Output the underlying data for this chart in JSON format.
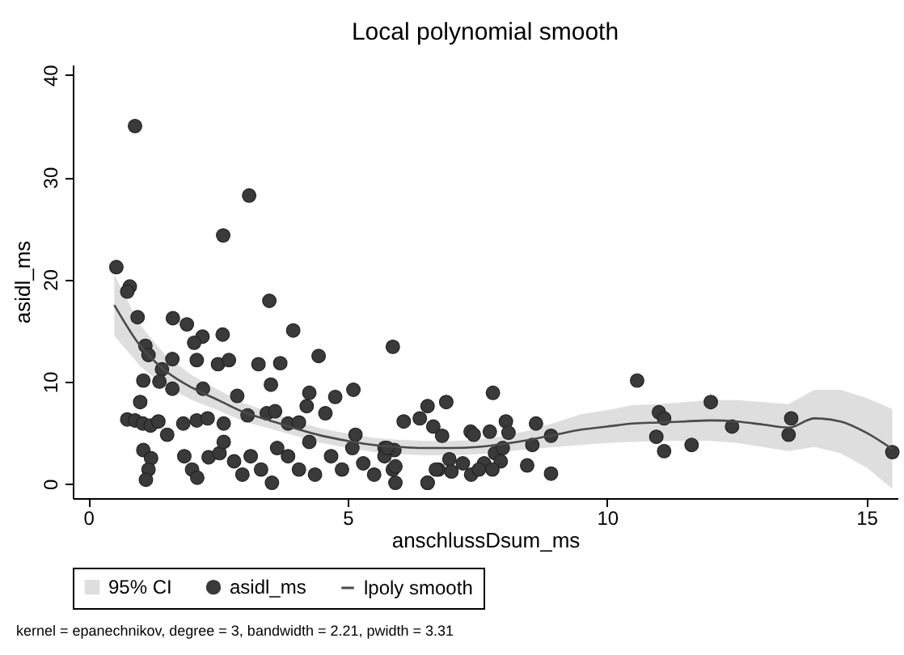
{
  "chart_data": {
    "type": "scatter",
    "title": "Local polynomial smooth",
    "xlabel": "anschlussDsum_ms",
    "ylabel": "asidl_ms",
    "xlim": [
      -0.3,
      15.6
    ],
    "ylim": [
      -1.4,
      41
    ],
    "xticks": [
      0,
      5,
      10,
      15
    ],
    "yticks": [
      0,
      10,
      20,
      30,
      40
    ],
    "grid": false,
    "legend": "bottom",
    "annotations": [
      "95% CI",
      "kernel = epanechnikov, degree = 3, bandwidth = 2.21, pwidth = 3.31"
    ],
    "series": [
      {
        "name": "asidl_ms",
        "color": "#3a3a3a",
        "marker": "circle",
        "x": [
          0.9,
          3.1,
          2.6,
          0.54,
          0.8,
          0.75,
          3.49,
          0.95,
          1.63,
          1.9,
          2.59,
          2.2,
          2.04,
          3.95,
          5.87,
          1.1,
          1.16,
          1.62,
          2.09,
          2.5,
          2.71,
          3.28,
          3.7,
          4.44,
          1.42,
          1.06,
          1.37,
          1.62,
          2.21,
          2.87,
          3.52,
          4.26,
          5.11,
          4.76,
          1.0,
          4.21,
          4.57,
          6.54,
          6.9,
          6.08,
          6.39,
          6.65,
          7.37,
          0.75,
          0.9,
          1.05,
          1.2,
          1.35,
          1.52,
          1.83,
          2.09,
          2.3,
          2.61,
          3.07,
          3.44,
          3.6,
          3.85,
          4.06,
          5.15,
          5.71,
          5.9,
          1.06,
          1.21,
          1.16,
          1.11,
          1.85,
          2.0,
          2.1,
          2.32,
          2.53,
          2.61,
          2.81,
          2.97,
          3.13,
          3.33,
          3.54,
          3.64,
          3.85,
          4.06,
          4.26,
          4.37,
          4.68,
          4.89,
          5.09,
          5.3,
          5.51,
          5.71,
          5.87,
          5.92,
          6.54,
          6.75,
          6.96,
          7.22,
          7.38,
          7.8,
          6.82,
          7.43,
          7.74,
          8.05,
          8.1,
          8.63,
          7.84,
          7.95,
          7.63,
          7.53,
          7.79,
          7.99,
          8.56,
          8.92,
          8.46,
          8.92,
          5.76,
          5.92,
          6.54,
          6.7,
          7.0,
          10.58,
          11.0,
          11.1,
          10.95,
          11.1,
          11.63,
          12.0,
          12.41,
          13.55,
          13.5,
          15.5
        ],
        "values": [
          35.0,
          28.2,
          24.3,
          21.2,
          19.3,
          18.8,
          17.9,
          16.3,
          16.2,
          15.6,
          14.6,
          14.4,
          13.8,
          15.0,
          13.4,
          13.5,
          12.6,
          12.2,
          12.1,
          11.7,
          12.1,
          11.7,
          11.8,
          12.5,
          11.2,
          10.1,
          10.0,
          9.3,
          9.3,
          8.6,
          9.7,
          8.9,
          9.2,
          8.5,
          8.0,
          7.6,
          6.9,
          7.6,
          8.0,
          6.1,
          6.4,
          5.6,
          5.1,
          6.3,
          6.2,
          5.9,
          5.7,
          6.1,
          4.8,
          5.9,
          6.2,
          6.4,
          5.9,
          6.7,
          6.9,
          7.1,
          5.9,
          6.0,
          4.8,
          3.5,
          3.3,
          3.3,
          2.5,
          1.4,
          0.4,
          2.7,
          1.4,
          0.6,
          2.6,
          3.0,
          4.1,
          2.2,
          0.9,
          2.7,
          1.4,
          0.1,
          3.5,
          2.7,
          1.4,
          4.1,
          0.9,
          2.7,
          1.4,
          3.5,
          2.0,
          0.9,
          2.7,
          1.4,
          0.1,
          0.1,
          1.4,
          2.4,
          2.0,
          0.9,
          8.9,
          4.7,
          4.8,
          5.1,
          6.1,
          5.0,
          5.9,
          3.0,
          2.2,
          2.0,
          1.4,
          1.4,
          3.5,
          3.8,
          4.7,
          1.8,
          1.0,
          3.5,
          1.7,
          0.1,
          1.4,
          1.2,
          10.1,
          7.0,
          6.4,
          4.6,
          3.2,
          3.8,
          8.0,
          5.6,
          6.4,
          4.8,
          3.1
        ]
      },
      {
        "name": "lpoly smooth",
        "type": "line",
        "color": "#4a4a4a",
        "marker": "none",
        "x": [
          0.5,
          1,
          1.5,
          2,
          2.5,
          3,
          3.5,
          4,
          4.5,
          5,
          5.5,
          6,
          6.5,
          7,
          7.5,
          8,
          8.5,
          9,
          9.5,
          10,
          10.5,
          11,
          11.5,
          12,
          12.5,
          13,
          13.5,
          14,
          14.5,
          15,
          15.5
        ],
        "values": [
          17.5,
          13.5,
          11,
          9.4,
          8.2,
          7.0,
          6.2,
          5.4,
          4.7,
          4.2,
          3.8,
          3.6,
          3.5,
          3.5,
          3.6,
          3.9,
          4.3,
          4.8,
          5.3,
          5.6,
          5.9,
          6.0,
          6.1,
          6.2,
          6.1,
          5.8,
          5.5,
          6.4,
          6.1,
          5.0,
          3.4
        ],
        "upper": [
          20.5,
          15.5,
          12.5,
          10.6,
          9.2,
          7.9,
          7.0,
          6.1,
          5.4,
          4.9,
          4.5,
          4.3,
          4.2,
          4.2,
          4.3,
          4.7,
          5.2,
          6.0,
          6.8,
          7.2,
          7.7,
          7.8,
          8.0,
          8.2,
          8.2,
          8.0,
          7.8,
          9.2,
          9.2,
          8.4,
          7.3
        ],
        "lower": [
          14.5,
          11.5,
          9.5,
          8.2,
          7.2,
          6.1,
          5.4,
          4.7,
          4.0,
          3.5,
          3.1,
          2.9,
          2.8,
          2.8,
          2.9,
          3.1,
          3.4,
          3.6,
          3.8,
          4.0,
          4.1,
          4.2,
          4.2,
          4.2,
          4.0,
          3.6,
          3.2,
          3.6,
          3.0,
          1.6,
          -0.5
        ]
      }
    ]
  }
}
